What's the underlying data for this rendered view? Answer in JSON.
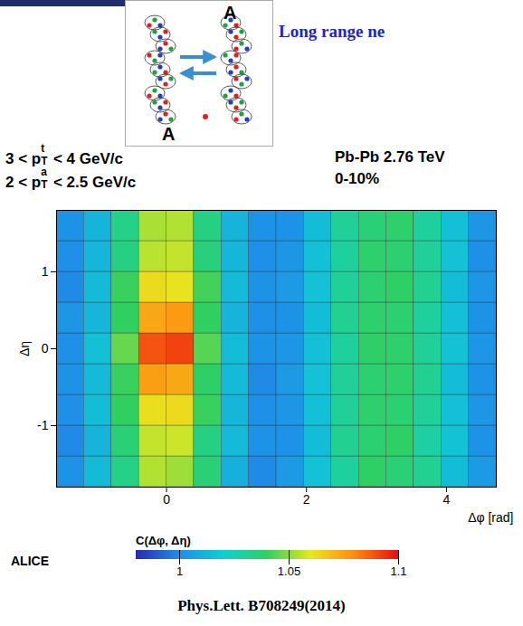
{
  "slide": {
    "title": "Long range ne",
    "cartoon_labels": [
      "A",
      "A"
    ],
    "citation": "Phys.Lett. B708249(2014)"
  },
  "chart_data": {
    "type": "heatmap",
    "annotations": [
      {
        "pre": "3 < p",
        "sub": "T",
        "sup": "t",
        "post": " < 4 GeV/c"
      },
      {
        "pre": "2 < p",
        "sub": "T",
        "sup": "a",
        "post": " < 2.5 GeV/c"
      }
    ],
    "system": "Pb-Pb 2.76 TeV",
    "centrality": "0-10%",
    "experiment": "ALICE",
    "x_label": "Δφ [rad]",
    "y_label": "Δη",
    "xlim": [
      -1.571,
      4.712
    ],
    "xticks": [
      0,
      2,
      4
    ],
    "ylim": [
      -1.8,
      1.8
    ],
    "yticks": [
      -1,
      0,
      1
    ],
    "x_bins": [
      -1.571,
      -1.178,
      -0.785,
      -0.393,
      0,
      0.393,
      0.785,
      1.178,
      1.571,
      1.963,
      2.356,
      2.749,
      3.142,
      3.534,
      3.927,
      4.32,
      4.712
    ],
    "y_bins": [
      -1.8,
      -1.4,
      -1.0,
      -0.6,
      -0.2,
      0.2,
      0.6,
      1.0,
      1.4,
      1.8
    ],
    "cells": [
      [
        1.001,
        1.013,
        1.033,
        1.054,
        1.052,
        1.036,
        1.01,
        0.999,
        1.003,
        1.016,
        1.029,
        1.039,
        1.036,
        1.031,
        1.014,
        1.003
      ],
      [
        0.999,
        1.011,
        1.036,
        1.056,
        1.057,
        1.034,
        1.013,
        1.001,
        1.001,
        1.014,
        1.031,
        1.037,
        1.039,
        1.028,
        1.016,
        1.001
      ],
      [
        1.0,
        1.014,
        1.04,
        1.062,
        1.063,
        1.041,
        1.012,
        1.0,
        1.002,
        1.015,
        1.03,
        1.038,
        1.037,
        1.03,
        1.015,
        1.002
      ],
      [
        1.001,
        1.013,
        1.041,
        1.076,
        1.074,
        1.039,
        1.013,
        0.999,
        1.003,
        1.016,
        1.03,
        1.037,
        1.038,
        1.031,
        1.014,
        1.001
      ],
      [
        1.0,
        1.015,
        1.046,
        1.089,
        1.092,
        1.044,
        1.014,
        1.001,
        1.002,
        1.015,
        1.029,
        1.039,
        1.038,
        1.03,
        1.016,
        1.002
      ],
      [
        1.002,
        1.012,
        1.04,
        1.074,
        1.077,
        1.04,
        1.011,
        1.0,
        1.001,
        1.014,
        1.031,
        1.038,
        1.037,
        1.029,
        1.015,
        1.001
      ],
      [
        0.999,
        1.013,
        1.041,
        1.063,
        1.061,
        1.042,
        1.013,
        1.001,
        1.003,
        1.016,
        1.03,
        1.037,
        1.039,
        1.031,
        1.014,
        1.002
      ],
      [
        1.0,
        1.012,
        1.034,
        1.055,
        1.056,
        1.035,
        1.012,
        1.0,
        1.002,
        1.015,
        1.029,
        1.038,
        1.037,
        1.03,
        1.016,
        1.0
      ],
      [
        1.001,
        1.011,
        1.033,
        1.053,
        1.054,
        1.034,
        1.011,
        1.001,
        1.001,
        1.014,
        1.03,
        1.036,
        1.038,
        1.029,
        1.015,
        1.002
      ]
    ],
    "color_bar": {
      "label": "C(Δφ, Δη)",
      "range": [
        0.98,
        1.1
      ],
      "ticks": [
        1,
        1.05,
        1.1
      ]
    }
  }
}
